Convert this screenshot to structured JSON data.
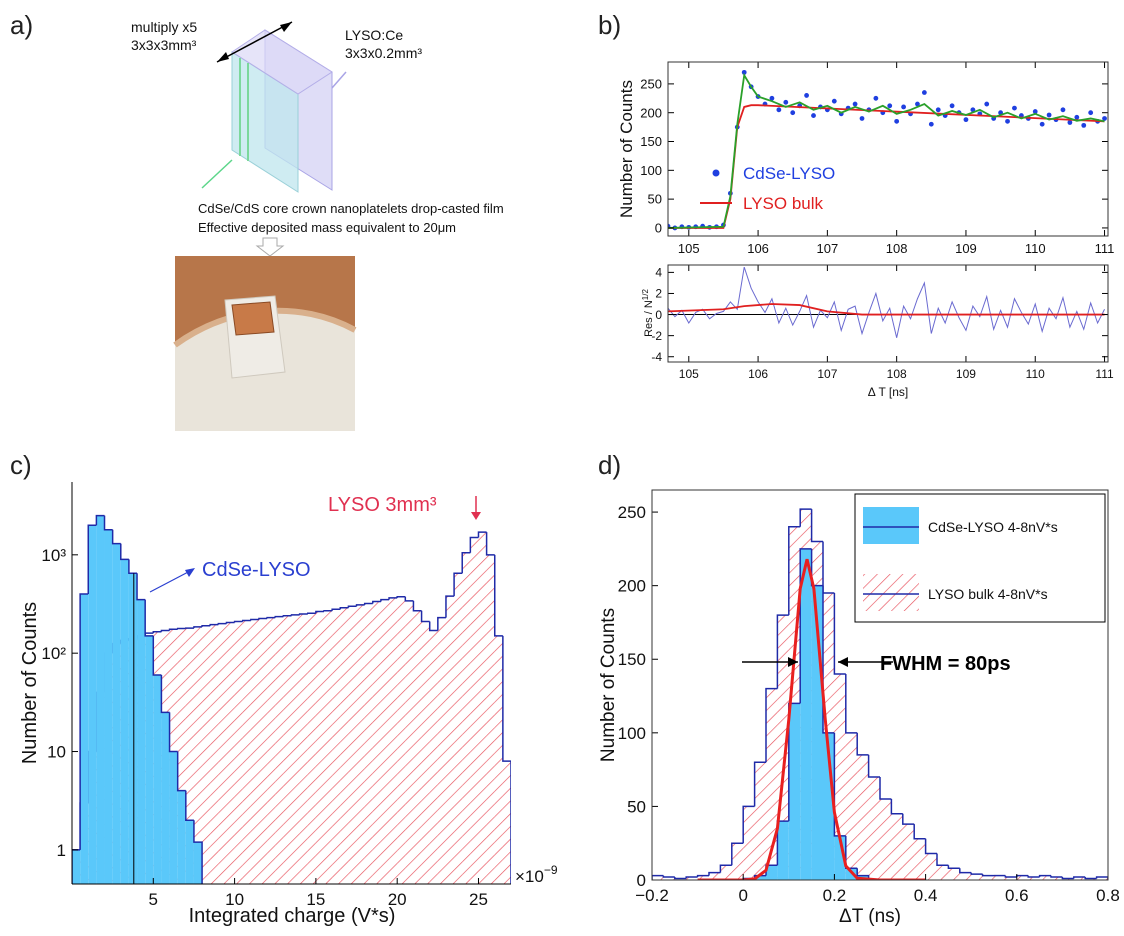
{
  "panel_a": {
    "label": "a)",
    "stack_note": "multiply x5",
    "cube_size": "3x3x3mm³",
    "crystal": "LYSO:Ce",
    "crystal_size": "3x3x0.2mm³",
    "caption_1": "CdSe/CdS core crown nanoplatelets drop-casted film",
    "caption_2": "Effective deposited mass equivalent to 20μm"
  },
  "chart_data": [
    {
      "type": "scatter",
      "label": "b)",
      "ylabel": "Number of Counts",
      "xlim": [
        104.7,
        111.05
      ],
      "ylim": [
        -14,
        288
      ],
      "xticks": [
        105,
        106,
        107,
        108,
        109,
        110,
        111
      ],
      "yticks": [
        0,
        50,
        100,
        150,
        200,
        250
      ],
      "legend": "center-left",
      "series": [
        {
          "name": "CdSe-LYSO",
          "color": "#1f3fe0",
          "kind": "scatter",
          "x": [
            104.7,
            104.8,
            104.9,
            105,
            105.1,
            105.2,
            105.3,
            105.4,
            105.5,
            105.6,
            105.7,
            105.8,
            105.9,
            106,
            106.1,
            106.2,
            106.3,
            106.4,
            106.5,
            106.6,
            106.7,
            106.8,
            106.9,
            107,
            107.1,
            107.2,
            107.3,
            107.4,
            107.5,
            107.6,
            107.7,
            107.8,
            107.9,
            108,
            108.1,
            108.2,
            108.3,
            108.4,
            108.5,
            108.6,
            108.7,
            108.8,
            108.9,
            109,
            109.1,
            109.2,
            109.3,
            109.4,
            109.5,
            109.6,
            109.7,
            109.8,
            109.9,
            110,
            110.1,
            110.2,
            110.3,
            110.4,
            110.5,
            110.6,
            110.7,
            110.8,
            110.9,
            111
          ],
          "values": [
            3,
            0,
            2,
            1,
            2,
            3,
            1,
            2,
            5,
            60,
            175,
            270,
            245,
            228,
            215,
            225,
            205,
            218,
            200,
            212,
            230,
            195,
            210,
            205,
            220,
            198,
            208,
            215,
            190,
            205,
            225,
            200,
            212,
            185,
            210,
            198,
            215,
            235,
            180,
            205,
            195,
            212,
            200,
            188,
            205,
            198,
            215,
            190,
            200,
            185,
            208,
            195,
            190,
            202,
            180,
            196,
            188,
            205,
            183,
            192,
            178,
            200,
            185,
            190
          ]
        },
        {
          "name": "LYSO bulk",
          "color": "#e02020",
          "kind": "line",
          "x": [
            104.7,
            105.5,
            105.6,
            105.7,
            105.8,
            105.9,
            106,
            111
          ],
          "values": [
            0,
            0,
            50,
            175,
            210,
            213,
            213,
            185
          ]
        },
        {
          "color": "#2aa02a",
          "kind": "line",
          "x": [
            104.7,
            105.5,
            105.6,
            105.7,
            105.8,
            105.9,
            106,
            106.2,
            106.4,
            106.6,
            106.8,
            107,
            107.2,
            107.4,
            107.6,
            107.8,
            108,
            108.2,
            108.4,
            108.6,
            108.8,
            109,
            109.2,
            109.4,
            109.6,
            109.8,
            110,
            110.2,
            110.4,
            110.6,
            110.8,
            111
          ],
          "values": [
            0,
            2,
            55,
            180,
            265,
            245,
            228,
            220,
            210,
            218,
            205,
            212,
            200,
            210,
            202,
            212,
            198,
            205,
            215,
            195,
            203,
            196,
            205,
            192,
            200,
            190,
            198,
            188,
            194,
            186,
            190,
            185
          ]
        }
      ]
    },
    {
      "type": "line",
      "ylabel": {
        "text": "Res / N",
        "superscript": "1/2"
      },
      "xlabel": "Δ T [ns]",
      "xlim": [
        104.7,
        111.05
      ],
      "ylim": [
        -4.5,
        4.7
      ],
      "xticks": [
        105,
        106,
        107,
        108,
        109,
        110,
        111
      ],
      "yticks": [
        -4,
        -2,
        0,
        2,
        4
      ],
      "hline": 0,
      "series": [
        {
          "color": "#6a6ad0",
          "kind": "line",
          "x": [
            104.7,
            104.8,
            104.9,
            105,
            105.1,
            105.2,
            105.3,
            105.4,
            105.5,
            105.6,
            105.7,
            105.8,
            105.9,
            106,
            106.1,
            106.2,
            106.3,
            106.4,
            106.5,
            106.6,
            106.7,
            106.8,
            106.9,
            107,
            107.1,
            107.2,
            107.3,
            107.4,
            107.5,
            107.6,
            107.7,
            107.8,
            107.9,
            108,
            108.1,
            108.2,
            108.3,
            108.4,
            108.5,
            108.6,
            108.7,
            108.8,
            108.9,
            109,
            109.1,
            109.2,
            109.3,
            109.4,
            109.5,
            109.6,
            109.7,
            109.8,
            109.9,
            110,
            110.1,
            110.2,
            110.3,
            110.4,
            110.5,
            110.6,
            110.7,
            110.8,
            110.9,
            111
          ],
          "values": [
            0.6,
            -0.2,
            0.4,
            -0.8,
            0.2,
            0.5,
            -0.4,
            0.1,
            0.3,
            1.2,
            0.5,
            4.5,
            2.5,
            1.2,
            0.2,
            1.5,
            -0.8,
            0.6,
            -1.0,
            0.3,
            1.8,
            -1.2,
            0.4,
            -0.3,
            1.2,
            -1.5,
            0.5,
            0.8,
            -1.8,
            0.2,
            2.0,
            -0.6,
            0.6,
            -2.2,
            0.8,
            -0.4,
            1.5,
            3.0,
            -1.8,
            0.6,
            -0.8,
            1.2,
            -0.3,
            -1.5,
            0.8,
            -0.2,
            1.7,
            -1.4,
            0.4,
            -1.2,
            1.5,
            0.2,
            -0.9,
            1.0,
            -1.6,
            0.6,
            -0.4,
            1.6,
            -1.2,
            0.3,
            -1.4,
            1.1,
            -0.8,
            0.5
          ]
        },
        {
          "color": "#e02020",
          "kind": "line",
          "x": [
            104.7,
            105.5,
            105.8,
            106.2,
            106.6,
            107,
            107.5,
            108,
            109,
            111
          ],
          "values": [
            0.3,
            0.5,
            0.8,
            1,
            0.9,
            0.3,
            0,
            0,
            0,
            0
          ]
        }
      ]
    },
    {
      "type": "histogram",
      "label": "c)",
      "xlabel": "Integrated charge (V*s)",
      "ylabel": "Number of Counts",
      "xscale_label": {
        "text": "×10",
        "exponent": "−9"
      },
      "log_y": true,
      "xlim": [
        0,
        27
      ],
      "ylim": [
        0.45,
        5500
      ],
      "xticks": [
        5,
        10,
        15,
        20,
        25
      ],
      "yticks": [
        1,
        10,
        {
          "value": 100,
          "label": "10²"
        },
        {
          "value": 1000,
          "label": "10³"
        }
      ],
      "vline": 3.8,
      "annotations": [
        {
          "text": "CdSe-LYSO",
          "color": "#2a3fd0"
        },
        {
          "text": "LYSO 3mm³",
          "color": "#e03050"
        }
      ],
      "series": [
        {
          "name": "CdSe-LYSO",
          "color": "#1f2aa8",
          "fill": "#5ac8fa",
          "bins": [
            0,
            0.5,
            1,
            1.5,
            2,
            2.5,
            3,
            3.5,
            4,
            4.5,
            5,
            5.5,
            6,
            6.5,
            7,
            7.5,
            8
          ],
          "values": [
            1,
            400,
            2000,
            2500,
            1800,
            1300,
            900,
            650,
            350,
            150,
            60,
            25,
            10,
            4,
            2,
            1.2
          ]
        },
        {
          "name": "LYSO bulk",
          "color": "#1f2aa8",
          "hatch": "#e8505b",
          "bins": [
            0,
            0.5,
            1,
            1.5,
            2,
            2.5,
            3,
            3.5,
            4,
            4.5,
            5,
            5.5,
            6,
            6.5,
            7,
            7.5,
            8,
            8.5,
            9,
            9.5,
            10,
            10.5,
            11,
            11.5,
            12,
            12.5,
            13,
            13.5,
            14,
            14.5,
            15,
            15.5,
            16,
            16.5,
            17,
            17.5,
            18,
            18.5,
            19,
            19.5,
            20,
            20.5,
            21,
            21.5,
            22,
            22.5,
            23,
            23.5,
            24,
            24.5,
            25,
            25.5,
            26,
            26.5,
            27
          ],
          "values": [
            1,
            3,
            10,
            40,
            100,
            125,
            135,
            140,
            150,
            160,
            165,
            170,
            175,
            178,
            180,
            185,
            190,
            195,
            200,
            205,
            210,
            215,
            220,
            225,
            230,
            235,
            240,
            245,
            250,
            255,
            265,
            270,
            280,
            290,
            300,
            310,
            320,
            335,
            350,
            365,
            375,
            340,
            270,
            210,
            170,
            230,
            380,
            650,
            1050,
            1500,
            1700,
            1000,
            150,
            8
          ]
        }
      ]
    },
    {
      "type": "histogram",
      "label": "d)",
      "xlabel": "ΔT (ns)",
      "ylabel": "Number of Counts",
      "xlim": [
        -0.2,
        0.8
      ],
      "ylim": [
        0,
        265
      ],
      "xticks": [
        {
          "value": -0.2,
          "label": "−0.2"
        },
        0,
        0.2,
        0.4,
        0.6,
        0.8
      ],
      "yticks": [
        0,
        50,
        100,
        150,
        200,
        250
      ],
      "legend": "top-right",
      "annotations": [
        {
          "text": "FWHM = 80ps",
          "color": "#000000"
        }
      ],
      "series": [
        {
          "name": "CdSe-LYSO 4-8nV*s",
          "color": "#1f2aa8",
          "fill": "#5ac8fa",
          "bins": [
            0,
            0.025,
            0.05,
            0.075,
            0.1,
            0.125,
            0.15,
            0.175,
            0.2,
            0.225,
            0.25,
            0.275
          ],
          "values": [
            1,
            3,
            10,
            40,
            120,
            225,
            200,
            100,
            30,
            8,
            3
          ]
        },
        {
          "name": "LYSO bulk 4-8nV*s",
          "color": "#1f2aa8",
          "hatch": "#e8505b",
          "bins": [
            -0.2,
            -0.175,
            -0.15,
            -0.125,
            -0.1,
            -0.075,
            -0.05,
            -0.025,
            0,
            0.025,
            0.05,
            0.075,
            0.1,
            0.125,
            0.15,
            0.175,
            0.2,
            0.225,
            0.25,
            0.275,
            0.3,
            0.325,
            0.35,
            0.375,
            0.4,
            0.425,
            0.45,
            0.475,
            0.5,
            0.525,
            0.55,
            0.575,
            0.6,
            0.625,
            0.65,
            0.675,
            0.7,
            0.725,
            0.75,
            0.775,
            0.8
          ],
          "values": [
            3,
            2,
            1,
            2,
            3,
            5,
            10,
            25,
            50,
            80,
            130,
            180,
            240,
            252,
            230,
            195,
            140,
            100,
            85,
            70,
            55,
            45,
            38,
            28,
            18,
            10,
            8,
            5,
            4,
            3,
            3,
            2,
            3,
            2,
            3,
            2,
            1,
            2,
            1,
            2
          ]
        },
        {
          "color": "#e82020",
          "kind": "line",
          "x": [
            -0.1,
            -0.05,
            0,
            0.025,
            0.05,
            0.075,
            0.1,
            0.125,
            0.14,
            0.155,
            0.18,
            0.2,
            0.225,
            0.25,
            0.3,
            0.35,
            0.4
          ],
          "values": [
            0,
            0,
            0.04,
            0.73,
            6.6,
            35,
            109,
            198,
            218,
            198,
            109,
            46,
            9.6,
            1.2,
            0,
            0,
            0
          ]
        }
      ]
    }
  ]
}
